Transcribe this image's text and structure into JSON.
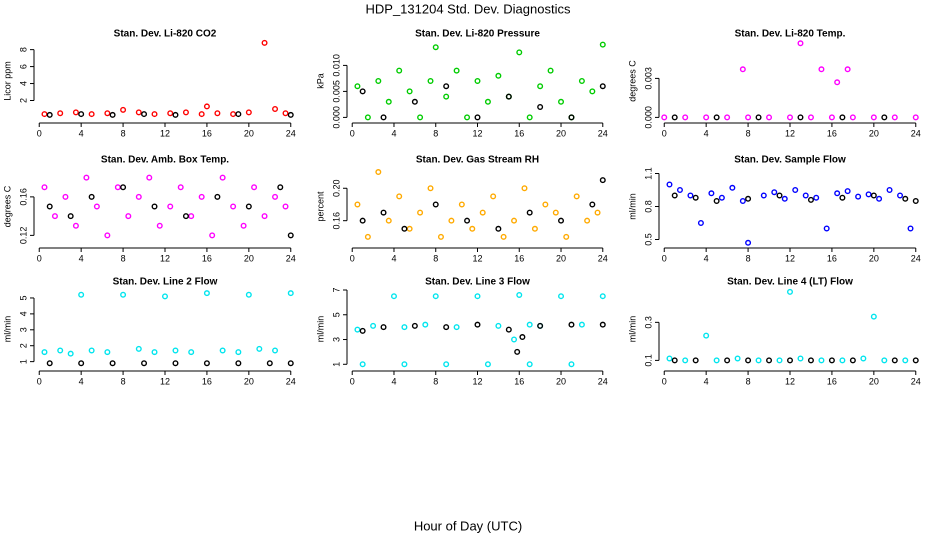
{
  "page": {
    "title": "HDP_131204  Std. Dev. Diagnostics",
    "xlabel": "Hour of Day (UTC)"
  },
  "chart_data": [
    {
      "type": "scatter",
      "title": "Stan. Dev. Li-820 CO2",
      "ylabel": "Licor ppm",
      "xlim": [
        -0.5,
        24.5
      ],
      "xticks": [
        0,
        4,
        8,
        12,
        16,
        20,
        24
      ],
      "ylim": [
        -0.3,
        8.9
      ],
      "yticks": [
        2,
        4,
        6,
        8
      ],
      "series": [
        {
          "color": "#ff0000",
          "x": [
            0.5,
            2,
            3.5,
            5,
            6.5,
            8,
            9.5,
            11,
            12.5,
            14,
            15.5,
            16,
            17,
            18.5,
            20,
            21.5,
            22.5,
            23.5
          ],
          "y": [
            0.4,
            0.5,
            0.6,
            0.4,
            0.5,
            0.9,
            0.6,
            0.4,
            0.5,
            0.6,
            0.4,
            1.3,
            0.5,
            0.4,
            0.6,
            8.8,
            1.0,
            0.5
          ]
        },
        {
          "color": "#000000",
          "x": [
            1,
            4,
            7,
            10,
            13,
            19,
            24
          ],
          "y": [
            0.3,
            0.4,
            0.3,
            0.4,
            0.3,
            0.4,
            0.3
          ]
        }
      ]
    },
    {
      "type": "scatter",
      "title": "Stan. Dev. Li-820 Pressure",
      "ylabel": "kPa",
      "xlim": [
        -0.5,
        24.5
      ],
      "xticks": [
        0,
        4,
        8,
        12,
        16,
        20,
        24
      ],
      "ylim": [
        -0.0005,
        0.0145
      ],
      "yticks": [
        {
          "value": 0,
          "label": "0.000"
        },
        {
          "value": 0.005,
          "label": "0.005"
        },
        {
          "value": 0.01,
          "label": "0.010"
        }
      ],
      "series": [
        {
          "color": "#00cc00",
          "x": [
            0.5,
            1.5,
            2.5,
            3.5,
            4.5,
            5.5,
            6.5,
            7.5,
            8,
            9,
            10,
            11,
            12,
            13,
            14,
            15,
            16,
            17,
            18,
            19,
            20,
            21,
            22,
            23,
            24
          ],
          "y": [
            0.006,
            0,
            0.007,
            0.003,
            0.009,
            0.005,
            0,
            0.007,
            0.0135,
            0.004,
            0.009,
            0,
            0.007,
            0.003,
            0.008,
            0.004,
            0.0125,
            0,
            0.006,
            0.009,
            0.003,
            0,
            0.007,
            0.005,
            0.014
          ]
        },
        {
          "color": "#000000",
          "x": [
            1,
            3,
            6,
            9,
            12,
            15,
            18,
            21,
            24
          ],
          "y": [
            0.005,
            0,
            0.003,
            0.006,
            0,
            0.004,
            0.002,
            0,
            0.006
          ]
        }
      ]
    },
    {
      "type": "scatter",
      "title": "Stan. Dev. Li-820 Temp.",
      "ylabel": "degrees C",
      "xlim": [
        -0.5,
        24.5
      ],
      "xticks": [
        0,
        4,
        8,
        12,
        16,
        20,
        24
      ],
      "ylim": [
        -0.0002,
        0.0058
      ],
      "yticks": [
        {
          "value": 0,
          "label": "0.000"
        },
        {
          "value": 0.003,
          "label": "0.003"
        }
      ],
      "series": [
        {
          "color": "#ff00ff",
          "x": [
            0,
            2,
            4,
            6,
            7.5,
            8,
            10,
            12,
            13,
            14,
            15,
            16,
            16.5,
            17.5,
            18,
            20,
            22,
            24
          ],
          "y": [
            0,
            0,
            0,
            0,
            0.0037,
            0,
            0,
            0,
            0.0057,
            0,
            0.0037,
            0,
            0.0027,
            0.0037,
            0,
            0,
            0,
            0
          ]
        },
        {
          "color": "#000000",
          "x": [
            1,
            5,
            9,
            13,
            17,
            21
          ],
          "y": [
            0,
            0,
            0,
            0,
            0,
            0
          ]
        }
      ]
    },
    {
      "type": "scatter",
      "title": "Stan. Dev. Amb. Box Temp.",
      "ylabel": "degrees C",
      "xlim": [
        -0.5,
        24.5
      ],
      "xticks": [
        0,
        4,
        8,
        12,
        16,
        20,
        24
      ],
      "ylim": [
        0.11,
        0.19
      ],
      "yticks": [
        0.12,
        0.16
      ],
      "series": [
        {
          "color": "#ff00ff",
          "x": [
            0.5,
            1.5,
            2.5,
            3.5,
            4.5,
            5.5,
            6.5,
            7.5,
            8.5,
            9.5,
            10.5,
            11.5,
            12.5,
            13.5,
            14.5,
            15.5,
            16.5,
            17.5,
            18.5,
            19.5,
            20.5,
            21.5,
            22.5,
            23.5
          ],
          "y": [
            0.17,
            0.14,
            0.16,
            0.13,
            0.18,
            0.15,
            0.12,
            0.17,
            0.14,
            0.16,
            0.18,
            0.13,
            0.15,
            0.17,
            0.14,
            0.16,
            0.12,
            0.18,
            0.15,
            0.13,
            0.17,
            0.14,
            0.16,
            0.15
          ]
        },
        {
          "color": "#000000",
          "x": [
            1,
            3,
            5,
            8,
            11,
            14,
            17,
            20,
            23,
            24
          ],
          "y": [
            0.15,
            0.14,
            0.16,
            0.17,
            0.15,
            0.14,
            0.16,
            0.15,
            0.17,
            0.12
          ]
        }
      ]
    },
    {
      "type": "scatter",
      "title": "Stan. Dev. Gas Stream RH",
      "ylabel": "percent",
      "xlim": [
        -0.5,
        24.5
      ],
      "xticks": [
        0,
        4,
        8,
        12,
        16,
        20,
        24
      ],
      "ylim": [
        0.13,
        0.225
      ],
      "yticks": [
        0.16,
        {
          "value": 0.2,
          "label": "0.20"
        }
      ],
      "series": [
        {
          "color": "#ffaa00",
          "x": [
            0.5,
            1.5,
            2.5,
            3.5,
            4.5,
            5.5,
            6.5,
            7.5,
            8.5,
            9.5,
            10.5,
            11.5,
            12.5,
            13.5,
            14.5,
            15.5,
            16.5,
            17.5,
            18.5,
            19.5,
            20.5,
            21.5,
            22.5,
            23.5
          ],
          "y": [
            0.18,
            0.14,
            0.22,
            0.16,
            0.19,
            0.15,
            0.17,
            0.2,
            0.14,
            0.16,
            0.18,
            0.15,
            0.17,
            0.19,
            0.14,
            0.16,
            0.2,
            0.15,
            0.18,
            0.17,
            0.14,
            0.19,
            0.16,
            0.17
          ]
        },
        {
          "color": "#000000",
          "x": [
            1,
            3,
            5,
            8,
            11,
            14,
            17,
            20,
            23,
            24
          ],
          "y": [
            0.16,
            0.17,
            0.15,
            0.18,
            0.16,
            0.15,
            0.17,
            0.16,
            0.18,
            0.21
          ]
        }
      ]
    },
    {
      "type": "scatter",
      "title": "Stan. Dev. Sample Flow",
      "ylabel": "ml/min",
      "xlim": [
        -0.5,
        24.5
      ],
      "xticks": [
        0,
        4,
        8,
        12,
        16,
        20,
        24
      ],
      "ylim": [
        0.45,
        1.15
      ],
      "yticks": [
        0.5,
        0.8,
        1.1
      ],
      "series": [
        {
          "color": "#0000ff",
          "x": [
            0.5,
            1.5,
            2.5,
            3.5,
            4.5,
            5.5,
            6.5,
            7.5,
            8,
            9.5,
            10.5,
            11.5,
            12.5,
            13.5,
            14.5,
            15.5,
            16.5,
            17.5,
            18.5,
            19.5,
            20.5,
            21.5,
            22.5,
            23.5
          ],
          "y": [
            1.0,
            0.95,
            0.9,
            0.65,
            0.92,
            0.88,
            0.97,
            0.85,
            0.47,
            0.9,
            0.93,
            0.87,
            0.95,
            0.9,
            0.88,
            0.6,
            0.92,
            0.94,
            0.89,
            0.91,
            0.87,
            0.95,
            0.9,
            0.6
          ]
        },
        {
          "color": "#000000",
          "x": [
            1,
            3,
            5,
            8,
            11,
            14,
            17,
            20,
            23,
            24
          ],
          "y": [
            0.9,
            0.88,
            0.85,
            0.87,
            0.9,
            0.86,
            0.88,
            0.9,
            0.87,
            0.85
          ]
        }
      ]
    },
    {
      "type": "scatter",
      "title": "Stan. Dev. Line 2 Flow",
      "ylabel": "ml/min",
      "xlim": [
        -0.5,
        24.5
      ],
      "xticks": [
        0,
        4,
        8,
        12,
        16,
        20,
        24
      ],
      "ylim": [
        0.6,
        5.5
      ],
      "yticks": [
        1,
        2,
        3,
        4,
        5
      ],
      "series": [
        {
          "color": "#00e5ee",
          "x": [
            0.5,
            2,
            3,
            4,
            5,
            6.5,
            8,
            9.5,
            11,
            12,
            13,
            14.5,
            16,
            17.5,
            19,
            20,
            21,
            22.5,
            24
          ],
          "y": [
            1.6,
            1.7,
            1.5,
            5.2,
            1.7,
            1.6,
            5.2,
            1.8,
            1.6,
            5.1,
            1.7,
            1.6,
            5.3,
            1.7,
            1.6,
            5.2,
            1.8,
            1.7,
            5.3
          ]
        },
        {
          "color": "#000000",
          "x": [
            1,
            4,
            7,
            10,
            13,
            16,
            19,
            22,
            24
          ],
          "y": [
            0.9,
            0.9,
            0.9,
            0.9,
            0.9,
            0.9,
            0.9,
            0.9,
            0.9
          ]
        }
      ]
    },
    {
      "type": "scatter",
      "title": "Stan. Dev. Line 3 Flow",
      "ylabel": "ml/min",
      "xlim": [
        -0.5,
        24.5
      ],
      "xticks": [
        0,
        4,
        8,
        12,
        16,
        20,
        24
      ],
      "ylim": [
        0.7,
        7
      ],
      "yticks": [
        1,
        3,
        5,
        7
      ],
      "series": [
        {
          "color": "#00e5ee",
          "x": [
            0.5,
            2,
            4,
            5,
            7,
            8,
            10,
            12,
            14,
            15.5,
            16,
            17,
            18,
            20,
            22,
            24,
            1,
            5,
            9,
            13,
            17,
            21
          ],
          "y": [
            3.8,
            4.1,
            6.5,
            4.0,
            4.2,
            6.5,
            4.0,
            6.5,
            4.1,
            3.0,
            6.6,
            4.2,
            4.1,
            6.5,
            4.2,
            6.5,
            1,
            1,
            1,
            1,
            1,
            1
          ]
        },
        {
          "color": "#000000",
          "x": [
            1,
            3,
            6,
            9,
            12,
            15,
            15.8,
            16.3,
            18,
            21,
            24
          ],
          "y": [
            3.7,
            4.0,
            4.1,
            4.0,
            4.2,
            3.8,
            2.0,
            3.2,
            4.1,
            4.2,
            4.2
          ]
        }
      ]
    },
    {
      "type": "scatter",
      "title": "Stan. Dev. Line 4 (LT) Flow",
      "ylabel": "ml/min",
      "xlim": [
        -0.5,
        24.5
      ],
      "xticks": [
        0,
        4,
        8,
        12,
        16,
        20,
        24
      ],
      "ylim": [
        0.06,
        0.47
      ],
      "yticks": [
        0.1,
        0.3
      ],
      "series": [
        {
          "color": "#00e5ee",
          "x": [
            0.5,
            2,
            4,
            5,
            7,
            9,
            11,
            12,
            13,
            15,
            17,
            19,
            20,
            21,
            23
          ],
          "y": [
            0.11,
            0.1,
            0.23,
            0.1,
            0.11,
            0.1,
            0.1,
            0.46,
            0.11,
            0.1,
            0.1,
            0.11,
            0.33,
            0.1,
            0.1
          ]
        },
        {
          "color": "#000000",
          "x": [
            1,
            3,
            6,
            8,
            10,
            12,
            14,
            16,
            18,
            22,
            24
          ],
          "y": [
            0.1,
            0.1,
            0.1,
            0.1,
            0.1,
            0.1,
            0.1,
            0.1,
            0.1,
            0.1,
            0.1
          ]
        }
      ]
    }
  ]
}
